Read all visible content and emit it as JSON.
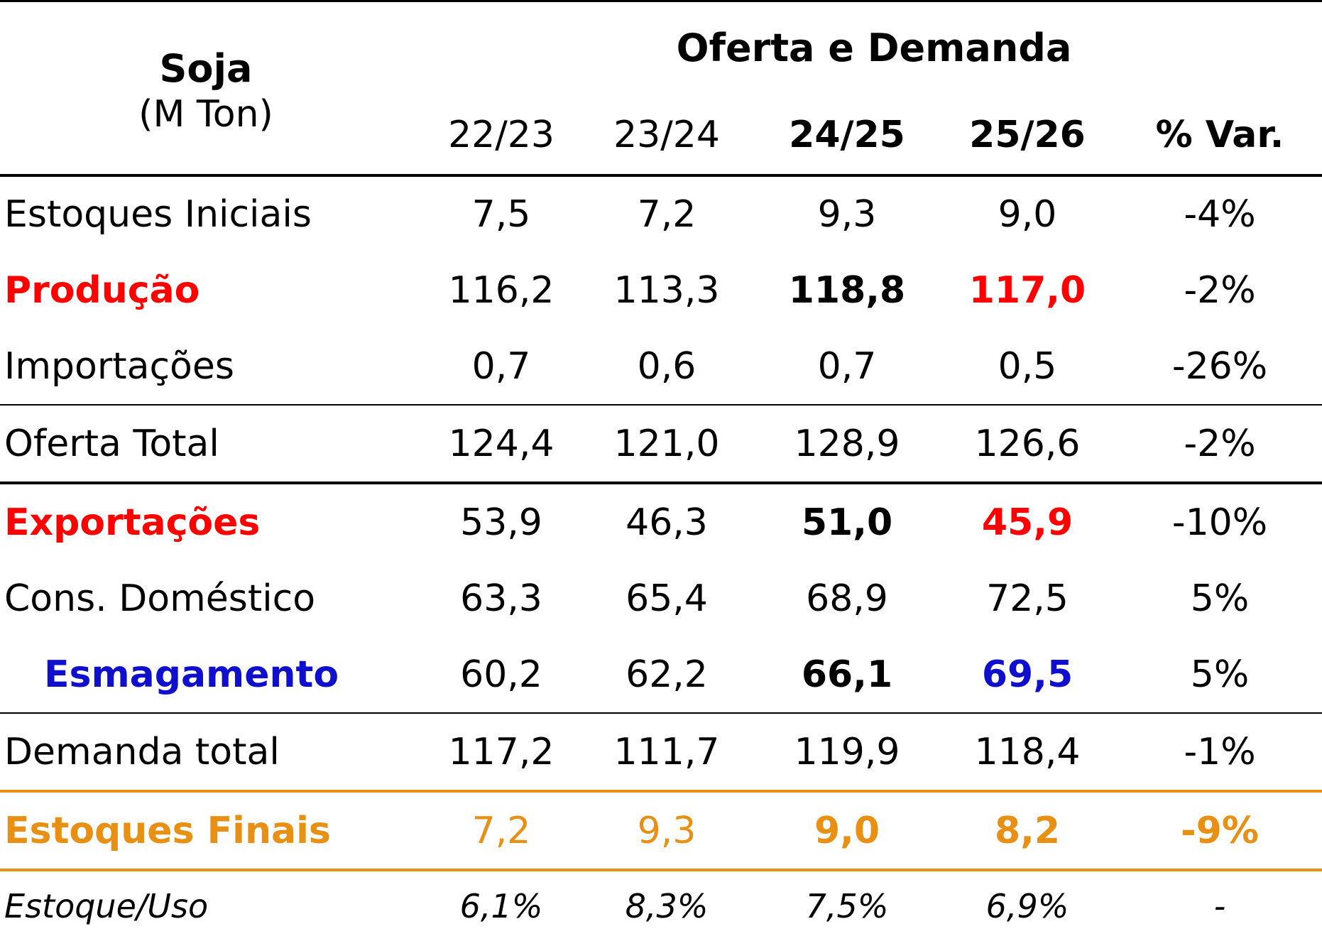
{
  "header": {
    "product": "Soja",
    "unit": "(M Ton)",
    "group": "Oferta e Demanda",
    "columns": [
      "22/23",
      "23/24",
      "24/25",
      "25/26",
      "% Var."
    ]
  },
  "rows": {
    "estoques_iniciais": {
      "label": "Estoques Iniciais",
      "values": [
        "7,5",
        "7,2",
        "9,3",
        "9,0",
        "-4%"
      ]
    },
    "producao": {
      "label": "Produção",
      "values": [
        "116,2",
        "113,3",
        "118,8",
        "117,0",
        "-2%"
      ]
    },
    "importacoes": {
      "label": "Importações",
      "values": [
        "0,7",
        "0,6",
        "0,7",
        "0,5",
        "-26%"
      ]
    },
    "oferta_total": {
      "label": "Oferta Total",
      "values": [
        "124,4",
        "121,0",
        "128,9",
        "126,6",
        "-2%"
      ]
    },
    "exportacoes": {
      "label": "Exportações",
      "values": [
        "53,9",
        "46,3",
        "51,0",
        "45,9",
        "-10%"
      ]
    },
    "cons_domestico": {
      "label": "Cons. Doméstico",
      "values": [
        "63,3",
        "65,4",
        "68,9",
        "72,5",
        "5%"
      ]
    },
    "esmagamento": {
      "label": "Esmagamento",
      "values": [
        "60,2",
        "62,2",
        "66,1",
        "69,5",
        "5%"
      ]
    },
    "demanda_total": {
      "label": "Demanda total",
      "values": [
        "117,2",
        "111,7",
        "119,9",
        "118,4",
        "-1%"
      ]
    },
    "estoques_finais": {
      "label": "Estoques Finais",
      "values": [
        "7,2",
        "9,3",
        "9,0",
        "8,2",
        "-9%"
      ]
    },
    "estoque_uso": {
      "label": "Estoque/Uso",
      "values": [
        "6,1%",
        "8,3%",
        "7,5%",
        "6,9%",
        "-"
      ]
    }
  },
  "colors": {
    "red": "#FF0000",
    "blue": "#1010CC",
    "orange": "#E89014"
  }
}
